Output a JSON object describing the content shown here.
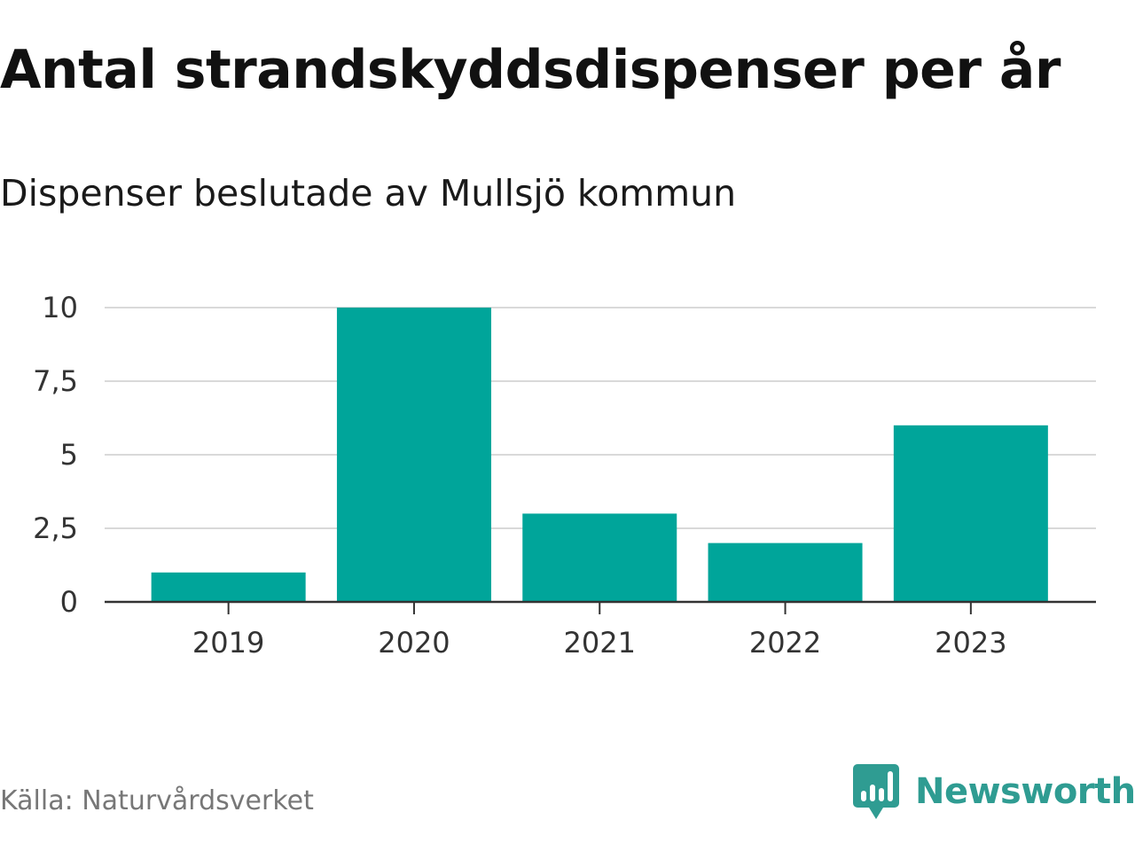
{
  "chart_data": {
    "type": "bar",
    "title": "Antal strandskyddsdispenser per år",
    "subtitle": "Dispenser beslutade av Mullsjö kommun",
    "categories": [
      "2019",
      "2020",
      "2021",
      "2022",
      "2023"
    ],
    "values": [
      1,
      10,
      3,
      2,
      6
    ],
    "ylim": [
      0,
      10
    ],
    "yticks": [
      0,
      2.5,
      5,
      7.5,
      10
    ],
    "ytick_labels": [
      "0",
      "2,5",
      "5",
      "7,5",
      "10"
    ],
    "xlabel": "",
    "ylabel": "",
    "grid": true,
    "bar_color": "#00a59a"
  },
  "source": "Källa: Naturvårdsverket",
  "brand": {
    "name": "Newsworthy",
    "color": "#2f9c92",
    "icon": "speech-bubble-chart-icon"
  }
}
